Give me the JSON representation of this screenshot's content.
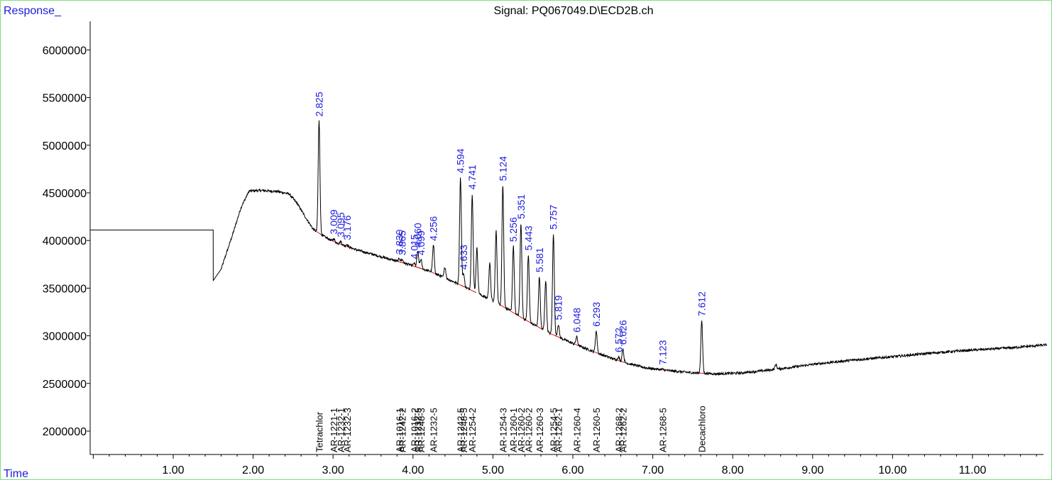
{
  "header": {
    "response_label": "Response_",
    "signal_title": "Signal: PQ067049.D\\ECD2B.ch",
    "time_label": "Time"
  },
  "colors": {
    "accent_blue": "#1b1bdc",
    "trace": "#000000",
    "baseline": "#e01010",
    "frame": "#7fe07f"
  },
  "chart_data": {
    "type": "line",
    "title": "Signal: PQ067049.D\\ECD2B.ch",
    "xlabel": "Time",
    "ylabel": "Response_",
    "xlim": [
      0.0,
      11.93
    ],
    "ylim": [
      1740000,
      6280000
    ],
    "x_ticks": [
      1.0,
      2.0,
      3.0,
      4.0,
      5.0,
      6.0,
      7.0,
      8.0,
      9.0,
      10.0,
      11.0
    ],
    "x_tick_labels": [
      "1.00",
      "2.00",
      "3.00",
      "4.00",
      "5.00",
      "6.00",
      "7.00",
      "8.00",
      "9.00",
      "10.00",
      "11.00"
    ],
    "x_minor_step": 0.2,
    "y_ticks": [
      2000000,
      2500000,
      3000000,
      3500000,
      4000000,
      4500000,
      5000000,
      5500000,
      6000000
    ],
    "y_tick_labels": [
      "2000000",
      "2500000",
      "3000000",
      "3500000",
      "4000000",
      "4500000",
      "5000000",
      "5500000",
      "6000000"
    ],
    "grid": false,
    "baseline_curve": [
      [
        -0.2,
        4110000
      ],
      [
        1.5,
        4110000
      ],
      [
        1.501,
        3580000
      ],
      [
        1.6,
        3700000
      ],
      [
        1.75,
        4080000
      ],
      [
        1.85,
        4350000
      ],
      [
        1.95,
        4520000
      ],
      [
        2.1,
        4525000
      ],
      [
        2.3,
        4515000
      ],
      [
        2.45,
        4490000
      ],
      [
        2.55,
        4390000
      ],
      [
        2.65,
        4250000
      ],
      [
        2.75,
        4120000
      ],
      [
        2.85,
        4060000
      ],
      [
        3.0,
        3990000
      ],
      [
        3.3,
        3900000
      ],
      [
        3.6,
        3830000
      ],
      [
        3.9,
        3760000
      ],
      [
        4.2,
        3680000
      ],
      [
        4.5,
        3570000
      ],
      [
        4.8,
        3450000
      ],
      [
        5.1,
        3320000
      ],
      [
        5.4,
        3170000
      ],
      [
        5.7,
        3030000
      ],
      [
        6.0,
        2920000
      ],
      [
        6.3,
        2820000
      ],
      [
        6.6,
        2730000
      ],
      [
        6.9,
        2665000
      ],
      [
        7.2,
        2635000
      ],
      [
        7.5,
        2612000
      ],
      [
        7.8,
        2600000
      ],
      [
        8.1,
        2610000
      ],
      [
        8.4,
        2635000
      ],
      [
        8.7,
        2665000
      ],
      [
        9.0,
        2700000
      ],
      [
        9.5,
        2745000
      ],
      [
        10.0,
        2780000
      ],
      [
        10.5,
        2820000
      ],
      [
        11.0,
        2850000
      ],
      [
        11.5,
        2875000
      ],
      [
        11.93,
        2905000
      ]
    ],
    "peaks": [
      {
        "x": 2.825,
        "y": 5255000,
        "label": "2.825",
        "labelled": true
      },
      {
        "x": 3.009,
        "y": 4020000,
        "label": "3.009",
        "labelled": true
      },
      {
        "x": 3.095,
        "y": 3990000,
        "label": "3.095",
        "labelled": true
      },
      {
        "x": 3.176,
        "y": 3960000,
        "label": "3.176",
        "labelled": true
      },
      {
        "x": 3.83,
        "y": 3810000,
        "label": "3.830",
        "labelled": true
      },
      {
        "x": 3.865,
        "y": 3800000,
        "label": "3.865",
        "labelled": true
      },
      {
        "x": 4.015,
        "y": 3760000,
        "label": "4.015",
        "labelled": true
      },
      {
        "x": 4.06,
        "y": 3880000,
        "label": "4.060",
        "labelled": true
      },
      {
        "x": 4.099,
        "y": 3800000,
        "label": "4.099",
        "labelled": true
      },
      {
        "x": 4.256,
        "y": 3950000,
        "label": "4.256",
        "labelled": true
      },
      {
        "x": 4.4,
        "y": 3720000,
        "label": "",
        "labelled": false
      },
      {
        "x": 4.594,
        "y": 4660000,
        "label": "4.594",
        "labelled": true
      },
      {
        "x": 4.633,
        "y": 3650000,
        "label": "4.633",
        "labelled": true
      },
      {
        "x": 4.741,
        "y": 4490000,
        "label": "4.741",
        "labelled": true
      },
      {
        "x": 4.8,
        "y": 3920000,
        "label": "",
        "labelled": false
      },
      {
        "x": 4.96,
        "y": 3760000,
        "label": "",
        "labelled": false
      },
      {
        "x": 5.04,
        "y": 4100000,
        "label": "",
        "labelled": false
      },
      {
        "x": 5.124,
        "y": 4580000,
        "label": "5.124",
        "labelled": true
      },
      {
        "x": 5.256,
        "y": 3940000,
        "label": "5.256",
        "labelled": true
      },
      {
        "x": 5.351,
        "y": 4180000,
        "label": "5.351",
        "labelled": true
      },
      {
        "x": 5.443,
        "y": 3850000,
        "label": "5.443",
        "labelled": true
      },
      {
        "x": 5.581,
        "y": 3620000,
        "label": "5.581",
        "labelled": true
      },
      {
        "x": 5.66,
        "y": 3580000,
        "label": "",
        "labelled": false
      },
      {
        "x": 5.757,
        "y": 4070000,
        "label": "5.757",
        "labelled": true
      },
      {
        "x": 5.819,
        "y": 3120000,
        "label": "5.819",
        "labelled": true
      },
      {
        "x": 6.048,
        "y": 2990000,
        "label": "6.048",
        "labelled": true
      },
      {
        "x": 6.293,
        "y": 3050000,
        "label": "6.293",
        "labelled": true
      },
      {
        "x": 6.572,
        "y": 2780000,
        "label": "6.572",
        "labelled": true
      },
      {
        "x": 6.626,
        "y": 2860000,
        "label": "6.626",
        "labelled": true
      },
      {
        "x": 7.123,
        "y": 2650000,
        "label": "7.123",
        "labelled": true
      },
      {
        "x": 7.612,
        "y": 3160000,
        "label": "7.612",
        "labelled": true
      },
      {
        "x": 8.54,
        "y": 2700000,
        "label": "",
        "labelled": false
      }
    ],
    "compound_markers": [
      {
        "x": 2.825,
        "label": "Tetrachlor"
      },
      {
        "x": 3.009,
        "label": "AR-1221-1"
      },
      {
        "x": 3.095,
        "label": "AR-1232-1"
      },
      {
        "x": 3.176,
        "label": "AR-1232-3"
      },
      {
        "x": 3.83,
        "label": "AR-1016-1"
      },
      {
        "x": 3.865,
        "label": "AR-1242-2"
      },
      {
        "x": 4.015,
        "label": "AR-1016-2"
      },
      {
        "x": 4.06,
        "label": "AR-1232-5"
      },
      {
        "x": 4.099,
        "label": "AR-1248-3"
      },
      {
        "x": 4.256,
        "label": "AR-1232-5"
      },
      {
        "x": 4.594,
        "label": "AR-1242-5"
      },
      {
        "x": 4.633,
        "label": "AR-1248-5"
      },
      {
        "x": 4.741,
        "label": "AR-1254-2"
      },
      {
        "x": 5.124,
        "label": "AR-1254-3"
      },
      {
        "x": 5.256,
        "label": "AR-1260-1"
      },
      {
        "x": 5.351,
        "label": "AR-1260-2"
      },
      {
        "x": 5.443,
        "label": "AR-1260-2"
      },
      {
        "x": 5.581,
        "label": "AR-1260-3"
      },
      {
        "x": 5.757,
        "label": "AR-1254-5"
      },
      {
        "x": 5.819,
        "label": "AR-1262-1"
      },
      {
        "x": 6.048,
        "label": "AR-1260-4"
      },
      {
        "x": 6.293,
        "label": "AR-1260-5"
      },
      {
        "x": 6.572,
        "label": "AR-1268-2"
      },
      {
        "x": 6.626,
        "label": "AR-1262-2"
      },
      {
        "x": 7.123,
        "label": "AR-1268-5"
      },
      {
        "x": 7.612,
        "label": "Decachloro"
      }
    ]
  }
}
